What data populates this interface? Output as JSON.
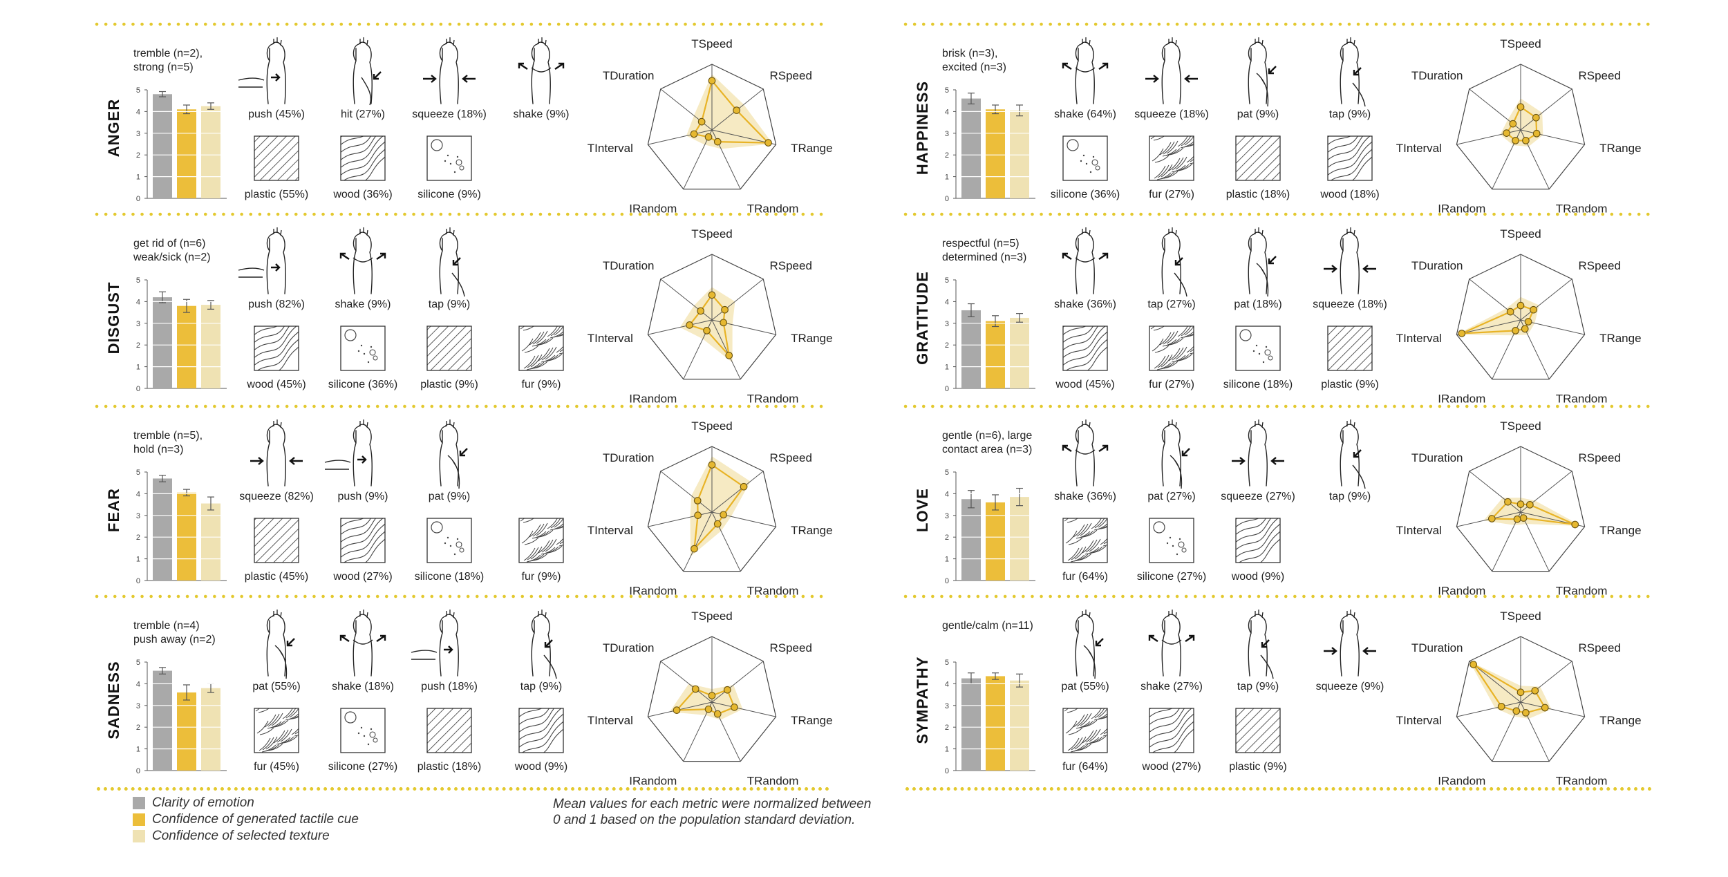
{
  "colors": {
    "clarity": "#a9a9a9",
    "confidence_cue": "#ecbe3a",
    "confidence_texture": "#efe2b3",
    "radar_line": "#e8b326",
    "radar_band": "#f5e6b8",
    "rule": "#e3c92f"
  },
  "legend": [
    {
      "label": "Clarity of emotion",
      "color": "#a9a9a9"
    },
    {
      "label": "Confidence of generated tactile cue",
      "color": "#ecbe3a"
    },
    {
      "label": "Confidence of selected texture",
      "color": "#efe2b3"
    }
  ],
  "note": {
    "line1": "Mean values for each metric were normalized between",
    "line2": "0 and 1 based on the population standard deviation."
  },
  "chart_data": [
    {
      "type": "bar",
      "emotion": "ANGER",
      "words": [
        "tremble (n=2),",
        "strong (n=5)"
      ],
      "series": [
        {
          "name": "Clarity of emotion",
          "values": [
            4.8
          ]
        },
        {
          "name": "Confidence of generated tactile cue",
          "values": [
            4.1
          ]
        },
        {
          "name": "Confidence of selected texture",
          "values": [
            4.25
          ]
        }
      ],
      "errors": [
        0.12,
        0.2,
        0.15
      ],
      "ylim": [
        0,
        5
      ],
      "yticks": [
        "0",
        "1",
        "2",
        "3",
        "4",
        "5"
      ],
      "gestures": [
        {
          "label": "push (45%)",
          "icon": "hand-push-icon"
        },
        {
          "label": "hit (27%)",
          "icon": "hand-hit-icon"
        },
        {
          "label": "squeeze (18%)",
          "icon": "hand-squeeze-icon"
        },
        {
          "label": "shake (9%)",
          "icon": "hand-shake-icon"
        }
      ],
      "textures": [
        {
          "label": "plastic (55%)",
          "icon": "plastic-texture-icon"
        },
        {
          "label": "wood (36%)",
          "icon": "wood-texture-icon"
        },
        {
          "label": "silicone (9%)",
          "icon": "silicone-texture-icon"
        }
      ],
      "radar": {
        "axes": [
          "TSpeed",
          "RSpeed",
          "TRange",
          "TRandom",
          "IRandom",
          "TInterval",
          "TDuration"
        ],
        "values": [
          0.75,
          0.48,
          0.88,
          0.2,
          0.12,
          0.28,
          0.2
        ],
        "band": [
          0.85,
          0.62,
          0.95,
          0.32,
          0.25,
          0.4,
          0.35
        ]
      }
    },
    {
      "type": "bar",
      "emotion": "HAPPINESS",
      "words": [
        "brisk (n=3),",
        "excited (n=3)"
      ],
      "series": [
        {
          "name": "Clarity of emotion",
          "values": [
            4.6
          ]
        },
        {
          "name": "Confidence of generated tactile cue",
          "values": [
            4.1
          ]
        },
        {
          "name": "Confidence of selected texture",
          "values": [
            4.05
          ]
        }
      ],
      "errors": [
        0.25,
        0.2,
        0.25
      ],
      "ylim": [
        0,
        5
      ],
      "yticks": [
        "0",
        "1",
        "2",
        "3",
        "4",
        "5"
      ],
      "gestures": [
        {
          "label": "shake (64%)",
          "icon": "hand-shake-icon"
        },
        {
          "label": "squeeze (18%)",
          "icon": "hand-squeeze-icon"
        },
        {
          "label": "pat (9%)",
          "icon": "hand-pat-icon"
        },
        {
          "label": "tap (9%)",
          "icon": "hand-tap-icon"
        }
      ],
      "textures": [
        {
          "label": "silicone (36%)",
          "icon": "silicone-texture-icon"
        },
        {
          "label": "fur (27%)",
          "icon": "fur-texture-icon"
        },
        {
          "label": "plastic (18%)",
          "icon": "plastic-texture-icon"
        },
        {
          "label": "wood (18%)",
          "icon": "wood-texture-icon"
        }
      ],
      "radar": {
        "axes": [
          "TSpeed",
          "RSpeed",
          "TRange",
          "TRandom",
          "IRandom",
          "TInterval",
          "TDuration"
        ],
        "values": [
          0.35,
          0.3,
          0.25,
          0.18,
          0.18,
          0.22,
          0.15
        ],
        "band": [
          0.48,
          0.42,
          0.35,
          0.28,
          0.26,
          0.32,
          0.25
        ]
      }
    },
    {
      "type": "bar",
      "emotion": "DISGUST",
      "words": [
        "get rid of (n=6)",
        "weak/sick (n=2)"
      ],
      "series": [
        {
          "name": "Clarity of emotion",
          "values": [
            4.2
          ]
        },
        {
          "name": "Confidence of generated tactile cue",
          "values": [
            3.8
          ]
        },
        {
          "name": "Confidence of selected texture",
          "values": [
            3.85
          ]
        }
      ],
      "errors": [
        0.25,
        0.3,
        0.2
      ],
      "ylim": [
        0,
        5
      ],
      "yticks": [
        "0",
        "1",
        "2",
        "3",
        "4",
        "5"
      ],
      "gestures": [
        {
          "label": "push (82%)",
          "icon": "hand-push-icon"
        },
        {
          "label": "shake (9%)",
          "icon": "hand-shake-icon"
        },
        {
          "label": "tap (9%)",
          "icon": "hand-tap-icon"
        }
      ],
      "textures": [
        {
          "label": "wood (45%)",
          "icon": "wood-texture-icon"
        },
        {
          "label": "silicone (36%)",
          "icon": "silicone-texture-icon"
        },
        {
          "label": "plastic (9%)",
          "icon": "plastic-texture-icon"
        },
        {
          "label": "fur (9%)",
          "icon": "fur-texture-icon"
        }
      ],
      "radar": {
        "axes": [
          "TSpeed",
          "RSpeed",
          "TRange",
          "TRandom",
          "IRandom",
          "TInterval",
          "TDuration"
        ],
        "values": [
          0.38,
          0.25,
          0.18,
          0.6,
          0.18,
          0.35,
          0.22
        ],
        "band": [
          0.5,
          0.45,
          0.32,
          0.72,
          0.32,
          0.5,
          0.35
        ]
      }
    },
    {
      "type": "bar",
      "emotion": "GRATITUDE",
      "words": [
        "respectful (n=5)",
        "determined (n=3)"
      ],
      "series": [
        {
          "name": "Clarity of emotion",
          "values": [
            3.6
          ]
        },
        {
          "name": "Confidence of generated tactile cue",
          "values": [
            3.1
          ]
        },
        {
          "name": "Confidence of selected texture",
          "values": [
            3.25
          ]
        }
      ],
      "errors": [
        0.3,
        0.25,
        0.2
      ],
      "ylim": [
        0,
        5
      ],
      "yticks": [
        "0",
        "1",
        "2",
        "3",
        "4",
        "5"
      ],
      "gestures": [
        {
          "label": "shake (36%)",
          "icon": "hand-shake-icon"
        },
        {
          "label": "tap (27%)",
          "icon": "hand-tap-icon"
        },
        {
          "label": "pat (18%)",
          "icon": "hand-pat-icon"
        },
        {
          "label": "squeeze (18%)",
          "icon": "hand-squeeze-icon"
        }
      ],
      "textures": [
        {
          "label": "wood (45%)",
          "icon": "wood-texture-icon"
        },
        {
          "label": "fur (27%)",
          "icon": "fur-texture-icon"
        },
        {
          "label": "silicone (18%)",
          "icon": "silicone-texture-icon"
        },
        {
          "label": "plastic (9%)",
          "icon": "plastic-texture-icon"
        }
      ],
      "radar": {
        "axes": [
          "TSpeed",
          "RSpeed",
          "TRange",
          "TRandom",
          "IRandom",
          "TInterval",
          "TDuration"
        ],
        "values": [
          0.22,
          0.25,
          0.12,
          0.15,
          0.18,
          0.92,
          0.2
        ],
        "band": [
          0.35,
          0.36,
          0.22,
          0.25,
          0.26,
          1.0,
          0.28
        ]
      }
    },
    {
      "type": "bar",
      "emotion": "FEAR",
      "words": [
        "tremble (n=5),",
        "hold (n=3)"
      ],
      "series": [
        {
          "name": "Clarity of emotion",
          "values": [
            4.7
          ]
        },
        {
          "name": "Confidence of generated tactile cue",
          "values": [
            4.05
          ]
        },
        {
          "name": "Confidence of selected texture",
          "values": [
            3.55
          ]
        }
      ],
      "errors": [
        0.15,
        0.15,
        0.3
      ],
      "ylim": [
        0,
        5
      ],
      "yticks": [
        "0",
        "1",
        "2",
        "3",
        "4",
        "5"
      ],
      "gestures": [
        {
          "label": "squeeze (82%)",
          "icon": "hand-squeeze-icon"
        },
        {
          "label": "push (9%)",
          "icon": "hand-push-icon"
        },
        {
          "label": "pat (9%)",
          "icon": "hand-pat-icon"
        }
      ],
      "textures": [
        {
          "label": "plastic (45%)",
          "icon": "plastic-texture-icon"
        },
        {
          "label": "wood (27%)",
          "icon": "wood-texture-icon"
        },
        {
          "label": "silicone (18%)",
          "icon": "silicone-texture-icon"
        },
        {
          "label": "fur (9%)",
          "icon": "fur-texture-icon"
        }
      ],
      "radar": {
        "axes": [
          "TSpeed",
          "RSpeed",
          "TRange",
          "TRandom",
          "IRandom",
          "TInterval",
          "TDuration"
        ],
        "values": [
          0.72,
          0.62,
          0.18,
          0.2,
          0.62,
          0.22,
          0.28
        ],
        "band": [
          0.85,
          0.75,
          0.3,
          0.32,
          0.75,
          0.34,
          0.4
        ]
      }
    },
    {
      "type": "bar",
      "emotion": "LOVE",
      "words": [
        "gentle (n=6), large",
        "contact area (n=3)"
      ],
      "series": [
        {
          "name": "Clarity of emotion",
          "values": [
            3.75
          ]
        },
        {
          "name": "Confidence of generated tactile cue",
          "values": [
            3.6
          ]
        },
        {
          "name": "Confidence of selected texture",
          "values": [
            3.85
          ]
        }
      ],
      "errors": [
        0.4,
        0.35,
        0.4
      ],
      "ylim": [
        0,
        5
      ],
      "yticks": [
        "0",
        "1",
        "2",
        "3",
        "4",
        "5"
      ],
      "gestures": [
        {
          "label": "shake (36%)",
          "icon": "hand-shake-icon"
        },
        {
          "label": "pat (27%)",
          "icon": "hand-pat-icon"
        },
        {
          "label": "squeeze (27%)",
          "icon": "hand-squeeze-icon"
        },
        {
          "label": "tap (9%)",
          "icon": "hand-tap-icon"
        }
      ],
      "textures": [
        {
          "label": "fur (64%)",
          "icon": "fur-texture-icon"
        },
        {
          "label": "silicone (27%)",
          "icon": "silicone-texture-icon"
        },
        {
          "label": "wood (9%)",
          "icon": "wood-texture-icon"
        }
      ],
      "radar": {
        "axes": [
          "TSpeed",
          "RSpeed",
          "TRange",
          "TRandom",
          "IRandom",
          "TInterval",
          "TDuration"
        ],
        "values": [
          0.12,
          0.18,
          0.85,
          0.1,
          0.12,
          0.45,
          0.25
        ],
        "band": [
          0.22,
          0.28,
          0.95,
          0.2,
          0.22,
          0.58,
          0.35
        ]
      }
    },
    {
      "type": "bar",
      "emotion": "SADNESS",
      "words": [
        "tremble (n=4)",
        "push away (n=2)"
      ],
      "series": [
        {
          "name": "Clarity of emotion",
          "values": [
            4.6
          ]
        },
        {
          "name": "Confidence of generated tactile cue",
          "values": [
            3.6
          ]
        },
        {
          "name": "Confidence of selected texture",
          "values": [
            3.8
          ]
        }
      ],
      "errors": [
        0.15,
        0.35,
        0.2
      ],
      "ylim": [
        0,
        5
      ],
      "yticks": [
        "0",
        "1",
        "2",
        "3",
        "4",
        "5"
      ],
      "gestures": [
        {
          "label": "pat (55%)",
          "icon": "hand-pat-icon"
        },
        {
          "label": "shake (18%)",
          "icon": "hand-shake-icon"
        },
        {
          "label": "push (18%)",
          "icon": "hand-push-icon"
        },
        {
          "label": "tap (9%)",
          "icon": "hand-tap-icon"
        }
      ],
      "textures": [
        {
          "label": "fur (45%)",
          "icon": "fur-texture-icon"
        },
        {
          "label": "silicone (27%)",
          "icon": "silicone-texture-icon"
        },
        {
          "label": "plastic (18%)",
          "icon": "plastic-texture-icon"
        },
        {
          "label": "wood (9%)",
          "icon": "wood-texture-icon"
        }
      ],
      "radar": {
        "axes": [
          "TSpeed",
          "RSpeed",
          "TRange",
          "TRandom",
          "IRandom",
          "TInterval",
          "TDuration"
        ],
        "values": [
          0.1,
          0.3,
          0.35,
          0.2,
          0.12,
          0.55,
          0.32
        ],
        "band": [
          0.2,
          0.42,
          0.48,
          0.3,
          0.22,
          0.66,
          0.45
        ]
      }
    },
    {
      "type": "bar",
      "emotion": "SYMPATHY",
      "words": [
        "gentle/calm (n=11)"
      ],
      "series": [
        {
          "name": "Clarity of emotion",
          "values": [
            4.25
          ]
        },
        {
          "name": "Confidence of generated tactile cue",
          "values": [
            4.35
          ]
        },
        {
          "name": "Confidence of selected texture",
          "values": [
            4.15
          ]
        }
      ],
      "errors": [
        0.25,
        0.15,
        0.3
      ],
      "ylim": [
        0,
        5
      ],
      "yticks": [
        "0",
        "1",
        "2",
        "3",
        "4",
        "5"
      ],
      "gestures": [
        {
          "label": "pat (55%)",
          "icon": "hand-pat-icon"
        },
        {
          "label": "shake (27%)",
          "icon": "hand-shake-icon"
        },
        {
          "label": "tap (9%)",
          "icon": "hand-tap-icon"
        },
        {
          "label": "squeeze (9%)",
          "icon": "hand-squeeze-icon"
        }
      ],
      "textures": [
        {
          "label": "fur (64%)",
          "icon": "fur-texture-icon"
        },
        {
          "label": "wood (27%)",
          "icon": "wood-texture-icon"
        },
        {
          "label": "plastic (9%)",
          "icon": "plastic-texture-icon"
        }
      ],
      "radar": {
        "axes": [
          "TSpeed",
          "RSpeed",
          "TRange",
          "TRandom",
          "IRandom",
          "TInterval",
          "TDuration"
        ],
        "values": [
          0.15,
          0.28,
          0.38,
          0.18,
          0.15,
          0.3,
          0.92
        ],
        "band": [
          0.25,
          0.38,
          0.48,
          0.28,
          0.24,
          0.4,
          1.0
        ]
      }
    }
  ]
}
